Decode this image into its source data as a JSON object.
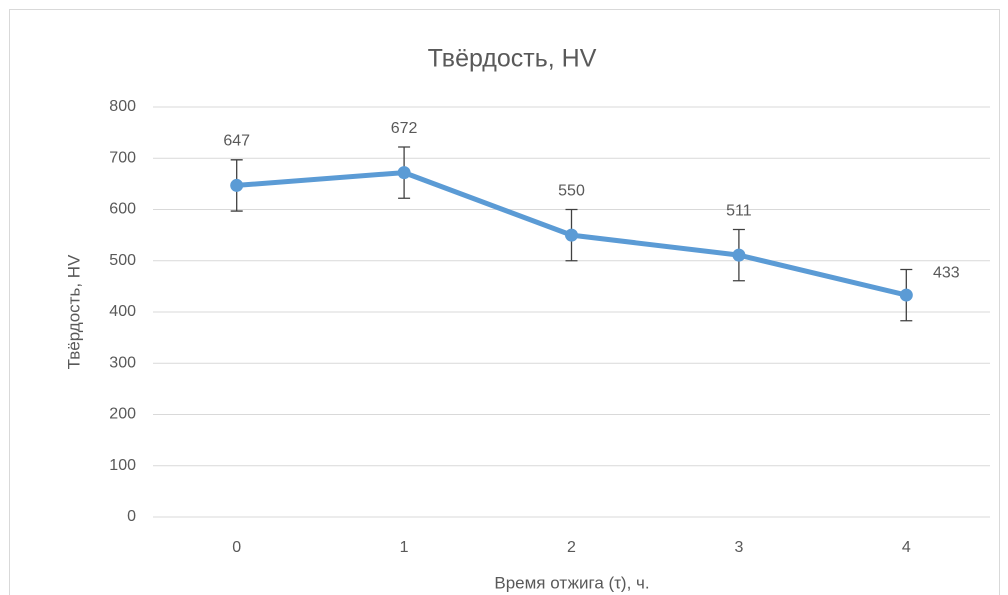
{
  "chart_data": {
    "type": "line",
    "title": "Твёрдость, HV",
    "x_label": "Время отжига (τ), ч.",
    "y_label": "Твёрдость, HV",
    "categories": [
      "0",
      "1",
      "2",
      "3",
      "4"
    ],
    "series": [
      {
        "name": "Твёрдость, HV",
        "color": "#5b9bd5",
        "values": [
          647,
          672,
          550,
          511,
          433
        ],
        "errors": [
          50,
          50,
          50,
          50,
          50
        ]
      }
    ],
    "ylim": [
      0,
      800
    ],
    "yticks": [
      0,
      100,
      200,
      300,
      400,
      500,
      600,
      700,
      800
    ],
    "grid": true
  }
}
